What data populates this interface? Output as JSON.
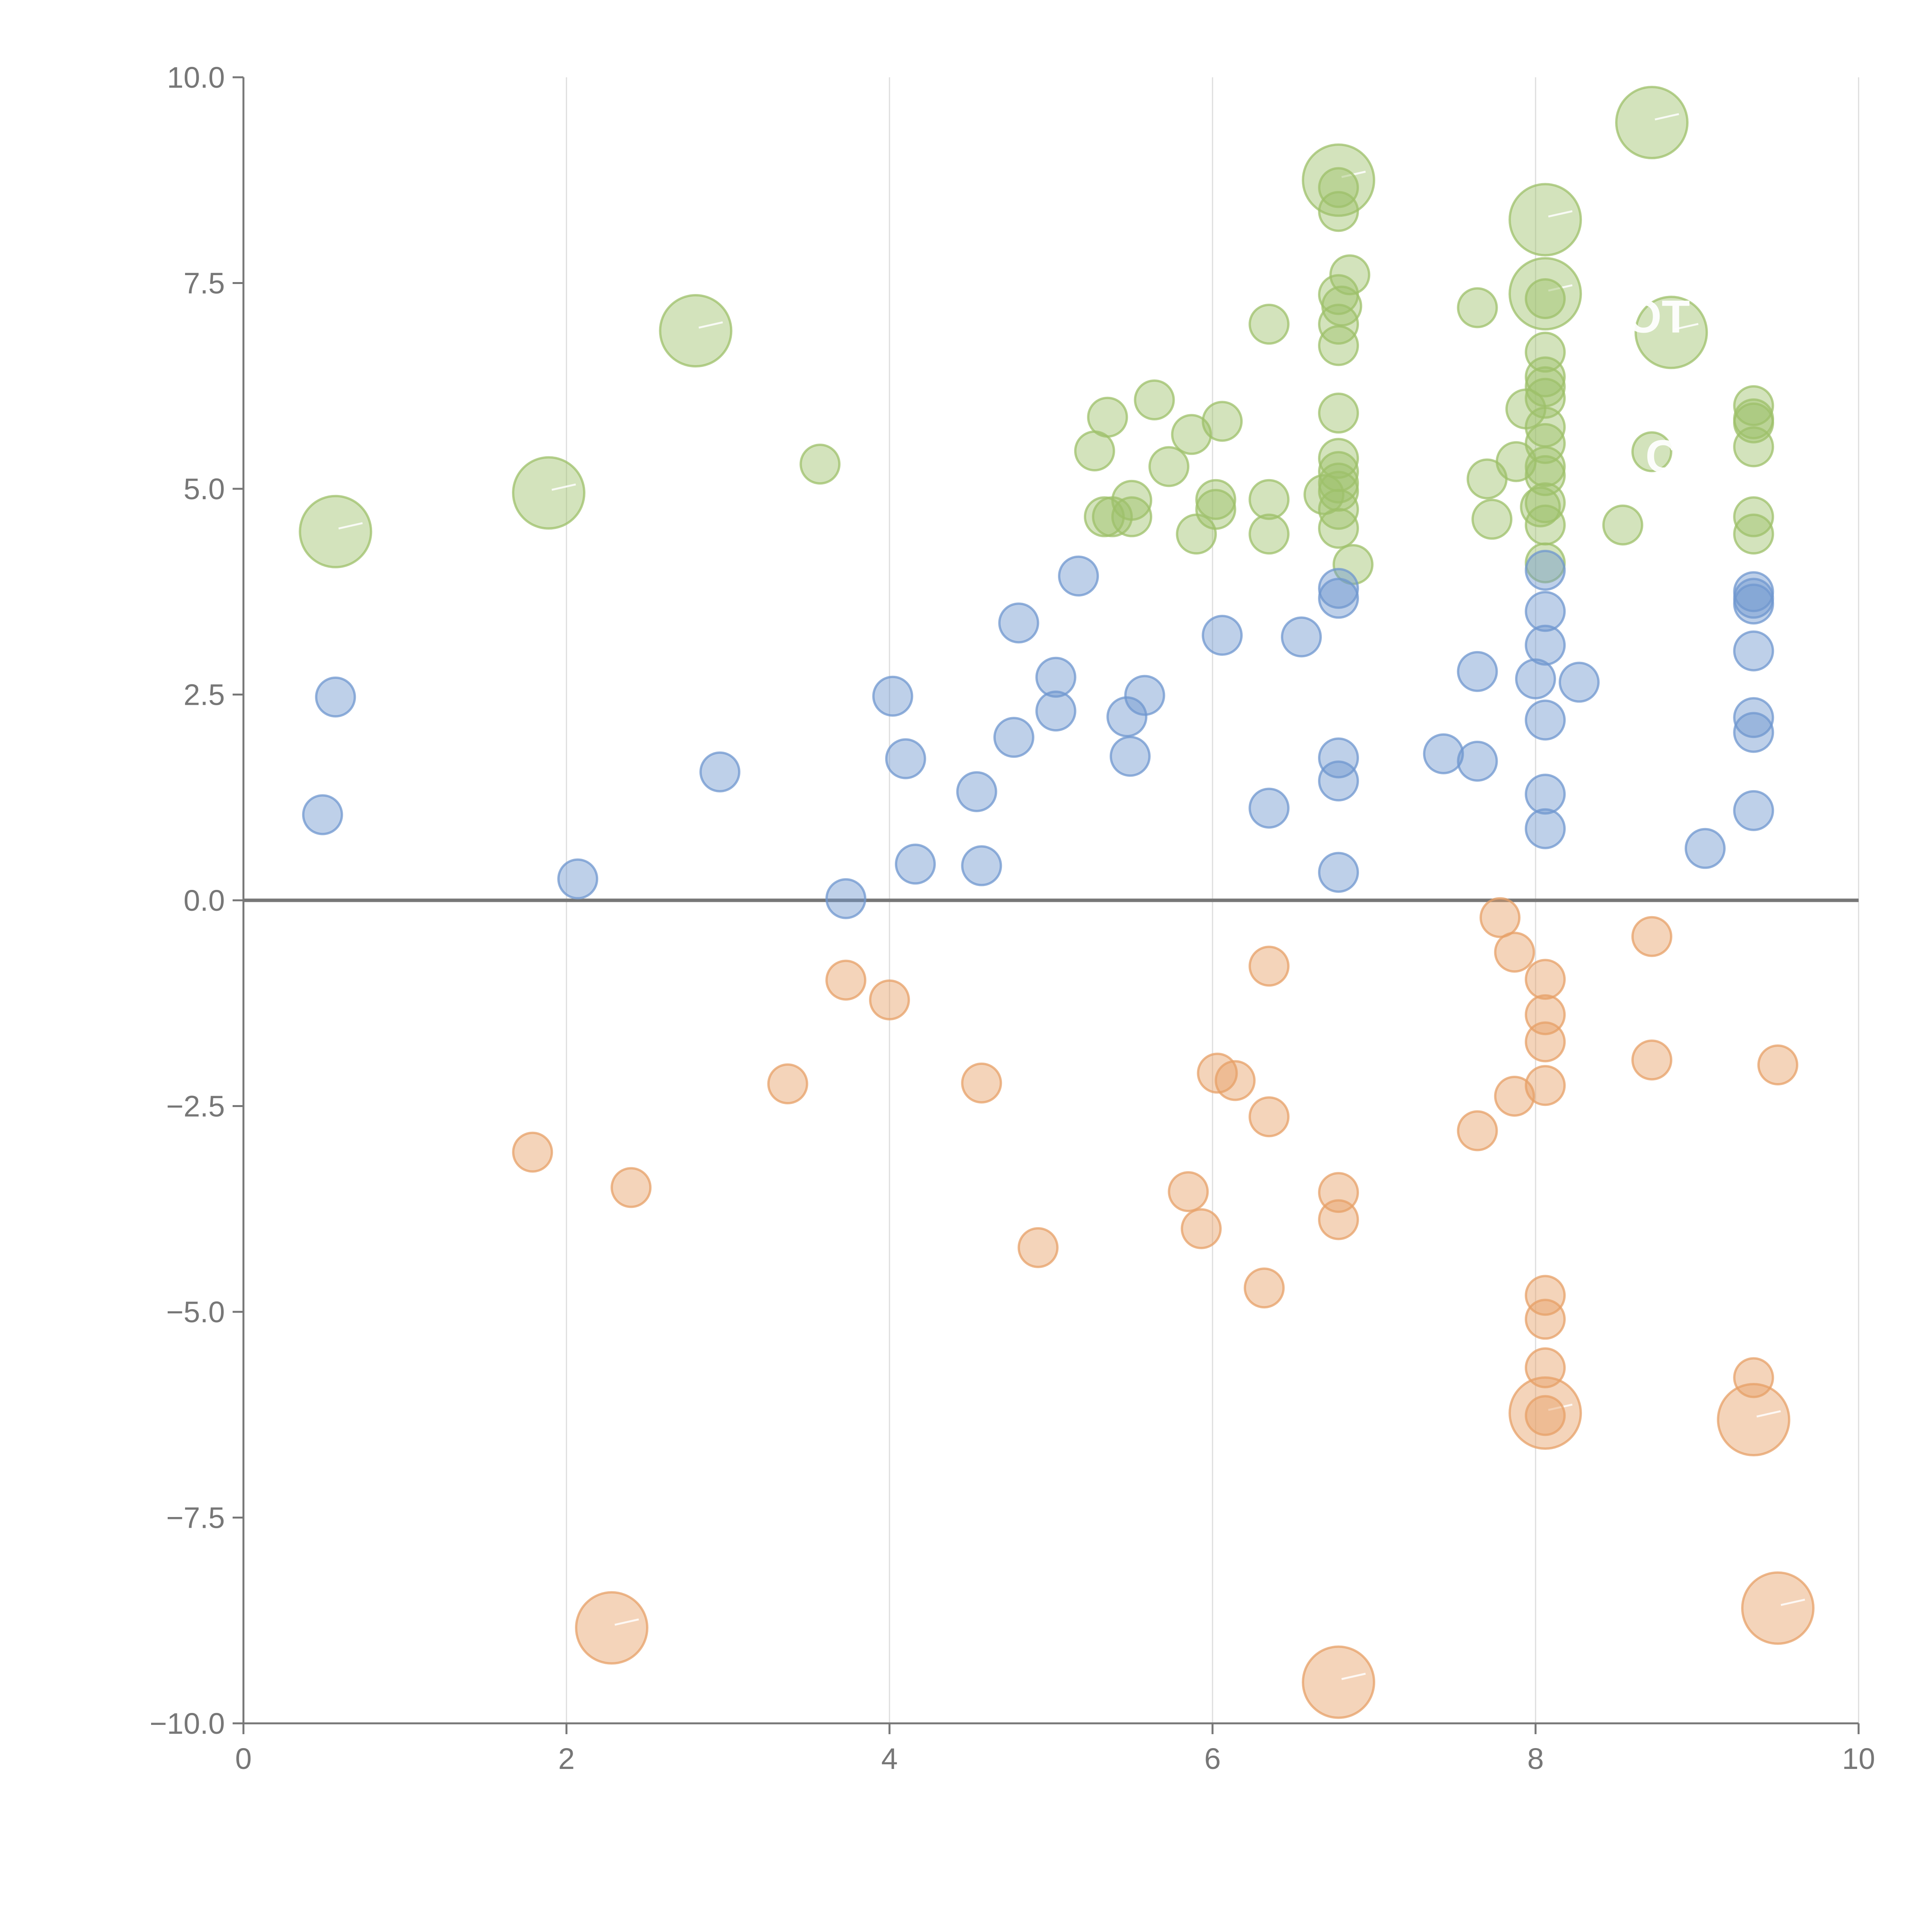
{
  "chart_data": {
    "type": "scatter",
    "subtype": "bubble",
    "title": "",
    "xlabel": "",
    "ylabel": "",
    "xlim": [
      0,
      10
    ],
    "ylim": [
      -10,
      10
    ],
    "x_ticks": [
      0,
      2,
      4,
      6,
      8,
      10
    ],
    "x_tick_labels": [
      "0",
      "2",
      "4",
      "6",
      "8",
      "10"
    ],
    "y_ticks": [
      10,
      7.5,
      5,
      2.5,
      0,
      -2.5,
      -5,
      -7.5,
      -10
    ],
    "y_tick_labels": [
      "10.0",
      "7.5",
      "5.0",
      "2.5",
      "0.0",
      "−2.5",
      "−5.0",
      "−7.5",
      "−10.0"
    ],
    "vertical_grid": true,
    "zero_line": true,
    "legend": "none",
    "colors": {
      "green": "#9dc06a",
      "blue": "#6f97cf",
      "orange": "#e7a067"
    },
    "series": [
      {
        "name": "green",
        "color": "#9dc06a",
        "points": [
          [
            0.57,
            4.48,
            3
          ],
          [
            1.89,
            4.95,
            3
          ],
          [
            2.8,
            6.92,
            3
          ],
          [
            3.57,
            5.3,
            1
          ],
          [
            5.27,
            5.46,
            1
          ],
          [
            5.35,
            5.87,
            1
          ],
          [
            5.33,
            4.66,
            1
          ],
          [
            5.38,
            4.66,
            1
          ],
          [
            5.5,
            4.86,
            1
          ],
          [
            5.5,
            4.66,
            1
          ],
          [
            5.64,
            6.08,
            1
          ],
          [
            5.73,
            5.27,
            1
          ],
          [
            5.87,
            5.66,
            1
          ],
          [
            5.9,
            4.45,
            1
          ],
          [
            6.02,
            4.87,
            1
          ],
          [
            6.02,
            4.75,
            1
          ],
          [
            6.06,
            5.82,
            1
          ],
          [
            6.35,
            7.0,
            1
          ],
          [
            6.35,
            4.87,
            1
          ],
          [
            6.35,
            4.45,
            1
          ],
          [
            6.69,
            4.93,
            1
          ],
          [
            6.78,
            8.75,
            3
          ],
          [
            6.78,
            8.66,
            1
          ],
          [
            6.78,
            8.37,
            1
          ],
          [
            6.85,
            7.6,
            1
          ],
          [
            6.78,
            7.36,
            1
          ],
          [
            6.8,
            7.22,
            1
          ],
          [
            6.78,
            7.0,
            1
          ],
          [
            6.78,
            6.74,
            1
          ],
          [
            6.78,
            5.92,
            1
          ],
          [
            6.78,
            5.37,
            1
          ],
          [
            6.78,
            5.21,
            1
          ],
          [
            6.78,
            5.07,
            1
          ],
          [
            6.78,
            4.97,
            1
          ],
          [
            6.78,
            4.75,
            1
          ],
          [
            6.78,
            4.52,
            1
          ],
          [
            6.87,
            4.08,
            1
          ],
          [
            7.64,
            7.2,
            1
          ],
          [
            7.7,
            5.12,
            1
          ],
          [
            7.73,
            4.63,
            1
          ],
          [
            7.88,
            5.33,
            1
          ],
          [
            7.94,
            5.97,
            1
          ],
          [
            8.03,
            4.78,
            1
          ],
          [
            8.06,
            8.27,
            3
          ],
          [
            8.06,
            7.37,
            3
          ],
          [
            8.06,
            7.31,
            1
          ],
          [
            8.06,
            6.66,
            1
          ],
          [
            8.06,
            6.36,
            1
          ],
          [
            8.06,
            6.24,
            1
          ],
          [
            8.06,
            6.1,
            1
          ],
          [
            8.06,
            5.75,
            1
          ],
          [
            8.06,
            5.55,
            1
          ],
          [
            8.06,
            5.27,
            1
          ],
          [
            8.06,
            5.16,
            1
          ],
          [
            8.06,
            4.83,
            1
          ],
          [
            8.06,
            4.56,
            1
          ],
          [
            8.06,
            4.1,
            1
          ],
          [
            8.54,
            4.56,
            1
          ],
          [
            8.72,
            9.45,
            3
          ],
          [
            8.72,
            5.45,
            1
          ],
          [
            8.84,
            6.9,
            3
          ],
          [
            9.35,
            6.01,
            1
          ],
          [
            9.35,
            5.85,
            1
          ],
          [
            9.35,
            5.8,
            1
          ],
          [
            9.35,
            5.51,
            1
          ],
          [
            9.35,
            4.66,
            1
          ],
          [
            9.35,
            4.45,
            1
          ]
        ]
      },
      {
        "name": "blue",
        "color": "#6f97cf",
        "points": [
          [
            0.57,
            2.47,
            1
          ],
          [
            0.49,
            1.04,
            1
          ],
          [
            2.07,
            0.26,
            1
          ],
          [
            2.95,
            1.56,
            1
          ],
          [
            3.73,
            0.02,
            1
          ],
          [
            4.02,
            2.48,
            1
          ],
          [
            4.1,
            1.72,
            1
          ],
          [
            4.16,
            0.44,
            1
          ],
          [
            4.54,
            1.32,
            1
          ],
          [
            4.57,
            0.42,
            1
          ],
          [
            4.77,
            1.98,
            1
          ],
          [
            4.8,
            3.37,
            1
          ],
          [
            5.03,
            2.71,
            1
          ],
          [
            5.03,
            2.3,
            1
          ],
          [
            5.17,
            3.94,
            1
          ],
          [
            5.47,
            2.23,
            1
          ],
          [
            5.49,
            1.75,
            1
          ],
          [
            5.58,
            2.49,
            1
          ],
          [
            6.06,
            3.22,
            1
          ],
          [
            6.35,
            1.12,
            1
          ],
          [
            6.55,
            3.2,
            1
          ],
          [
            6.78,
            3.79,
            1
          ],
          [
            6.78,
            3.67,
            1
          ],
          [
            6.78,
            1.73,
            1
          ],
          [
            6.78,
            1.45,
            1
          ],
          [
            6.78,
            0.34,
            1
          ],
          [
            7.43,
            1.78,
            1
          ],
          [
            7.64,
            2.78,
            1
          ],
          [
            7.64,
            1.69,
            1
          ],
          [
            8.0,
            2.69,
            1
          ],
          [
            8.06,
            4.01,
            1
          ],
          [
            8.06,
            3.51,
            1
          ],
          [
            8.06,
            3.1,
            1
          ],
          [
            8.06,
            2.19,
            1
          ],
          [
            8.06,
            1.29,
            1
          ],
          [
            8.06,
            0.87,
            1
          ],
          [
            8.27,
            2.65,
            1
          ],
          [
            9.05,
            0.63,
            1
          ],
          [
            9.35,
            3.75,
            1
          ],
          [
            9.35,
            3.67,
            1
          ],
          [
            9.35,
            3.6,
            1
          ],
          [
            9.35,
            3.03,
            1
          ],
          [
            9.35,
            2.22,
            1
          ],
          [
            9.35,
            2.04,
            1
          ],
          [
            9.35,
            1.09,
            1
          ]
        ]
      },
      {
        "name": "orange",
        "color": "#e7a067",
        "points": [
          [
            1.79,
            -3.06,
            1
          ],
          [
            2.4,
            -3.49,
            1
          ],
          [
            2.28,
            -8.84,
            3
          ],
          [
            3.37,
            -2.23,
            1
          ],
          [
            3.73,
            -0.97,
            1
          ],
          [
            4.0,
            -1.21,
            1
          ],
          [
            4.57,
            -2.22,
            1
          ],
          [
            4.92,
            -4.22,
            1
          ],
          [
            5.85,
            -3.54,
            1
          ],
          [
            5.93,
            -3.99,
            1
          ],
          [
            6.03,
            -2.1,
            1
          ],
          [
            6.14,
            -2.19,
            1
          ],
          [
            6.35,
            -0.8,
            1
          ],
          [
            6.35,
            -2.63,
            1
          ],
          [
            6.32,
            -4.71,
            1
          ],
          [
            6.78,
            -3.55,
            1
          ],
          [
            6.78,
            -3.88,
            1
          ],
          [
            6.78,
            -9.5,
            3
          ],
          [
            7.64,
            -2.8,
            1
          ],
          [
            7.78,
            -0.21,
            1
          ],
          [
            7.87,
            -0.63,
            1
          ],
          [
            7.87,
            -2.38,
            1
          ],
          [
            8.06,
            -0.96,
            1
          ],
          [
            8.06,
            -1.39,
            1
          ],
          [
            8.06,
            -1.72,
            1
          ],
          [
            8.06,
            -2.25,
            1
          ],
          [
            8.06,
            -4.8,
            1
          ],
          [
            8.06,
            -5.09,
            1
          ],
          [
            8.06,
            -5.68,
            1
          ],
          [
            8.06,
            -6.23,
            3
          ],
          [
            8.06,
            -6.26,
            1
          ],
          [
            8.72,
            -0.44,
            1
          ],
          [
            8.72,
            -1.94,
            1
          ],
          [
            9.35,
            -5.8,
            1
          ],
          [
            9.35,
            -6.31,
            3
          ],
          [
            9.5,
            -2.0,
            1
          ],
          [
            9.5,
            -8.6,
            3
          ]
        ]
      }
    ],
    "annotations": [
      "HOT",
      "CE"
    ]
  }
}
